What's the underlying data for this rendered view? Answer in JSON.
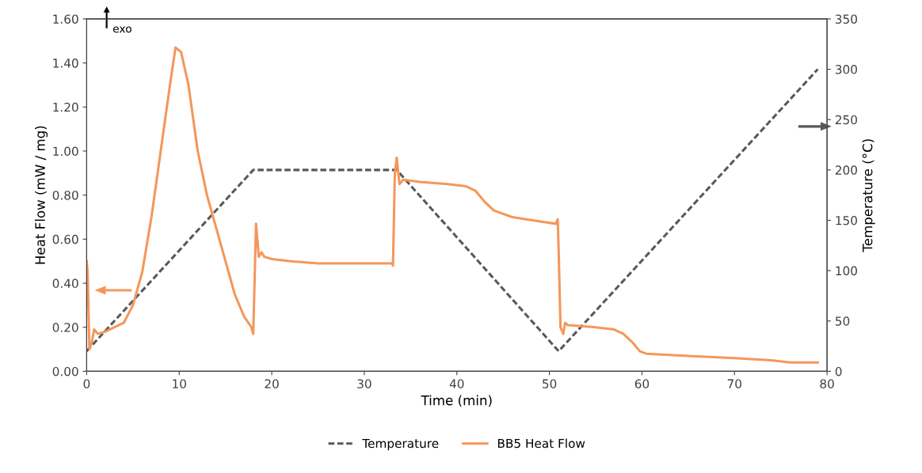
{
  "chart_data": {
    "type": "line",
    "xlabel": "Time (min)",
    "ylabel": "Heat Flow (mW / mg)",
    "y2label": "Temperature (°C)",
    "annotations": [
      "exo"
    ],
    "xlim": [
      0,
      80
    ],
    "xticks": [
      0,
      10,
      20,
      30,
      40,
      50,
      60,
      70,
      80
    ],
    "ylim": [
      0,
      1.6
    ],
    "yticks": [
      {
        "value": 0,
        "label": "0.00"
      },
      {
        "value": 0.2,
        "label": "0.20"
      },
      {
        "value": 0.4,
        "label": "0.40"
      },
      {
        "value": 0.6,
        "label": "0.60"
      },
      {
        "value": 0.8,
        "label": "0.80"
      },
      {
        "value": 1.0,
        "label": "1.00"
      },
      {
        "value": 1.2,
        "label": "1.20"
      },
      {
        "value": 1.4,
        "label": "1.40"
      },
      {
        "value": 1.6,
        "label": "1.60"
      }
    ],
    "y2lim": [
      0,
      350
    ],
    "y2ticks": [
      0,
      50,
      100,
      150,
      200,
      250,
      300,
      350
    ],
    "grid": false,
    "legend": "bottom",
    "marker": "none",
    "series": [
      {
        "name": "Temperature",
        "color": "#595959",
        "axis": "y2",
        "line_style": "dashed",
        "x": [
          0,
          18,
          33.5,
          51,
          79
        ],
        "values": [
          20,
          200,
          200,
          20,
          300
        ]
      },
      {
        "name": "BB5 Heat Flow",
        "color": "#f4975a",
        "line_style": "solid",
        "x": [
          0,
          0.1,
          0.3,
          0.6,
          0.8,
          1.2,
          2,
          3,
          4,
          5,
          6,
          7,
          8,
          9,
          9.6,
          10.2,
          11,
          12,
          13,
          14,
          15,
          16,
          17,
          17.8,
          18.0,
          18.3,
          18.6,
          18.9,
          19.2,
          20,
          22,
          25,
          30,
          33.0,
          33.1,
          33.3,
          33.5,
          33.8,
          34.2,
          36,
          39,
          41,
          42,
          43,
          44,
          46,
          49,
          50.7,
          50.9,
          51.0,
          51.2,
          51.5,
          51.7,
          52,
          55,
          57,
          58,
          59,
          59.8,
          60.5,
          65,
          70,
          74,
          76,
          79
        ],
        "values": [
          0.5,
          0.45,
          0.1,
          0.14,
          0.19,
          0.17,
          0.18,
          0.2,
          0.22,
          0.3,
          0.45,
          0.7,
          1.0,
          1.3,
          1.47,
          1.45,
          1.3,
          1.0,
          0.8,
          0.65,
          0.5,
          0.35,
          0.25,
          0.2,
          0.17,
          0.67,
          0.52,
          0.54,
          0.52,
          0.51,
          0.5,
          0.49,
          0.49,
          0.49,
          0.48,
          0.9,
          0.97,
          0.85,
          0.87,
          0.86,
          0.85,
          0.84,
          0.82,
          0.77,
          0.73,
          0.7,
          0.68,
          0.67,
          0.69,
          0.55,
          0.2,
          0.17,
          0.22,
          0.21,
          0.2,
          0.19,
          0.17,
          0.13,
          0.09,
          0.08,
          0.07,
          0.06,
          0.05,
          0.04,
          0.04
        ]
      }
    ]
  }
}
